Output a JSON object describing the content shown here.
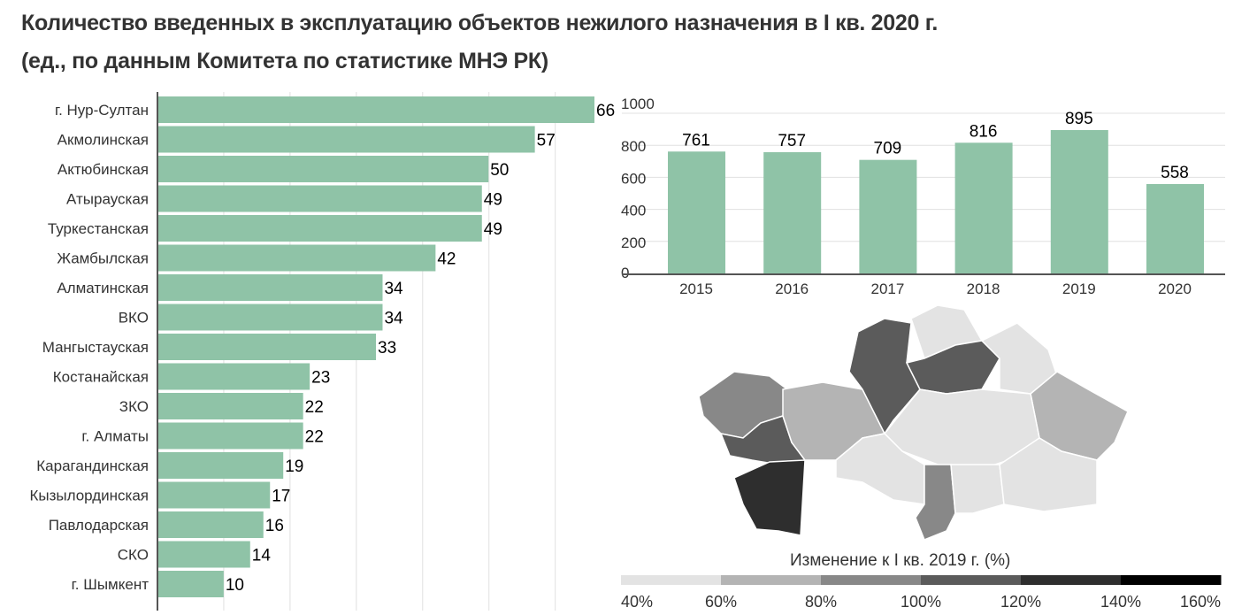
{
  "title_line1": "Количество введенных в эксплуатацию объектов нежилого назначения в I кв. 2020 г.",
  "title_line2": "(ед., по данным Комитета по статистике МНЭ РК)",
  "chart_data": [
    {
      "type": "bar",
      "orientation": "horizontal",
      "categories": [
        "г. Нур-Султан",
        "Акмолинская",
        "Актюбинская",
        "Атырауская",
        "Туркестанская",
        "Жамбылская",
        "Алматинская",
        "ВКО",
        "Мангыстауская",
        "Костанайская",
        "ЗКО",
        "г. Алматы",
        "Карагандинская",
        "Кызылординская",
        "Павлодарская",
        "СКО",
        "г. Шымкент"
      ],
      "values": [
        66,
        57,
        50,
        49,
        49,
        42,
        34,
        34,
        33,
        23,
        22,
        22,
        19,
        17,
        16,
        14,
        10
      ],
      "xlim": [
        0,
        70
      ],
      "grid": true,
      "color": "#8fc3a7"
    },
    {
      "type": "bar",
      "categories": [
        "2015",
        "2016",
        "2017",
        "2018",
        "2019",
        "2020"
      ],
      "values": [
        761,
        757,
        709,
        816,
        895,
        558
      ],
      "yticks": [
        "0",
        "200",
        "400",
        "600",
        "800",
        "1000"
      ],
      "ylim": [
        0,
        1000
      ],
      "grid": true,
      "color": "#8fc3a7"
    },
    {
      "type": "map",
      "legend_title": "Изменение к I кв. 2019 г. (%)",
      "legend_ticks": [
        "40%",
        "60%",
        "80%",
        "100%",
        "120%",
        "140%",
        "160%"
      ],
      "legend_colors": [
        "#e3e3e3",
        "#b4b4b4",
        "#888888",
        "#5b5b5b",
        "#2e2e2e",
        "#000000"
      ]
    }
  ]
}
